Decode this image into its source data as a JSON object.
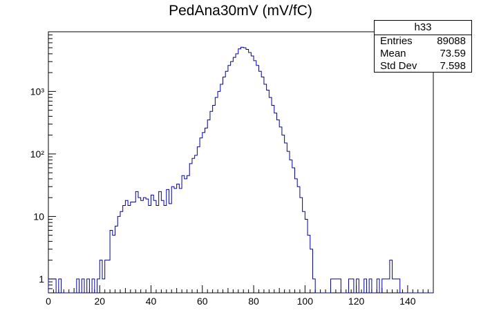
{
  "chart_data": {
    "type": "histogram",
    "title": "PedAna30mV (mV/fC)",
    "xlabel": "",
    "ylabel": "",
    "xlim": [
      0,
      150
    ],
    "ylim": [
      0.6,
      9000
    ],
    "yscale": "log",
    "bin_width": 1,
    "x_ticks": [
      0,
      20,
      40,
      60,
      80,
      100,
      120,
      140
    ],
    "y_ticks": [
      {
        "value": 1,
        "label": "1"
      },
      {
        "value": 10,
        "label": "10"
      },
      {
        "value": 100,
        "label": "10²"
      },
      {
        "value": 1000,
        "label": "10³"
      }
    ],
    "bins": [
      [
        0,
        1
      ],
      [
        1,
        1
      ],
      [
        2,
        1
      ],
      [
        4,
        1
      ],
      [
        11,
        1
      ],
      [
        13,
        1
      ],
      [
        15,
        1
      ],
      [
        17,
        1
      ],
      [
        19,
        1
      ],
      [
        20,
        2
      ],
      [
        21,
        1
      ],
      [
        22,
        2
      ],
      [
        23,
        2
      ],
      [
        24,
        6
      ],
      [
        25,
        5
      ],
      [
        26,
        7
      ],
      [
        27,
        10
      ],
      [
        28,
        12
      ],
      [
        29,
        15
      ],
      [
        30,
        18
      ],
      [
        31,
        15
      ],
      [
        32,
        17
      ],
      [
        33,
        17
      ],
      [
        34,
        25
      ],
      [
        35,
        20
      ],
      [
        36,
        18
      ],
      [
        37,
        20
      ],
      [
        38,
        19
      ],
      [
        39,
        15
      ],
      [
        40,
        22
      ],
      [
        41,
        18
      ],
      [
        42,
        15
      ],
      [
        43,
        25
      ],
      [
        44,
        18
      ],
      [
        45,
        15
      ],
      [
        46,
        27
      ],
      [
        47,
        16
      ],
      [
        48,
        30
      ],
      [
        49,
        28
      ],
      [
        50,
        33
      ],
      [
        51,
        28
      ],
      [
        52,
        45
      ],
      [
        53,
        40
      ],
      [
        54,
        45
      ],
      [
        55,
        70
      ],
      [
        56,
        85
      ],
      [
        57,
        95
      ],
      [
        58,
        130
      ],
      [
        59,
        180
      ],
      [
        60,
        220
      ],
      [
        61,
        260
      ],
      [
        62,
        350
      ],
      [
        63,
        480
      ],
      [
        64,
        600
      ],
      [
        65,
        800
      ],
      [
        66,
        1000
      ],
      [
        67,
        1300
      ],
      [
        68,
        1700
      ],
      [
        69,
        2100
      ],
      [
        70,
        2600
      ],
      [
        71,
        3000
      ],
      [
        72,
        3500
      ],
      [
        73,
        4000
      ],
      [
        74,
        4800
      ],
      [
        75,
        5100
      ],
      [
        76,
        5000
      ],
      [
        77,
        4700
      ],
      [
        78,
        4200
      ],
      [
        79,
        3700
      ],
      [
        80,
        3100
      ],
      [
        81,
        2600
      ],
      [
        82,
        2100
      ],
      [
        83,
        1700
      ],
      [
        84,
        1300
      ],
      [
        85,
        1050
      ],
      [
        86,
        800
      ],
      [
        87,
        600
      ],
      [
        88,
        450
      ],
      [
        89,
        350
      ],
      [
        90,
        270
      ],
      [
        91,
        200
      ],
      [
        92,
        150
      ],
      [
        93,
        110
      ],
      [
        94,
        80
      ],
      [
        95,
        60
      ],
      [
        96,
        40
      ],
      [
        97,
        30
      ],
      [
        98,
        20
      ],
      [
        99,
        12
      ],
      [
        100,
        9
      ],
      [
        101,
        5
      ],
      [
        102,
        3
      ],
      [
        103,
        1
      ],
      [
        110,
        1
      ],
      [
        111,
        1
      ],
      [
        112,
        1
      ],
      [
        113,
        1
      ],
      [
        117,
        1
      ],
      [
        118,
        1
      ],
      [
        120,
        1
      ],
      [
        123,
        1
      ],
      [
        125,
        1
      ],
      [
        128,
        1
      ],
      [
        130,
        1
      ],
      [
        131,
        1
      ],
      [
        132,
        1
      ],
      [
        133,
        2
      ],
      [
        134,
        1
      ],
      [
        135,
        1
      ],
      [
        136,
        1
      ]
    ]
  },
  "stats": {
    "name": "h33",
    "rows": [
      {
        "label": "Entries",
        "value": "89088"
      },
      {
        "label": "Mean",
        "value": "73.59"
      },
      {
        "label": "Std Dev",
        "value": "7.598"
      }
    ]
  },
  "colors": {
    "line": "#000099",
    "axis": "#000000"
  }
}
